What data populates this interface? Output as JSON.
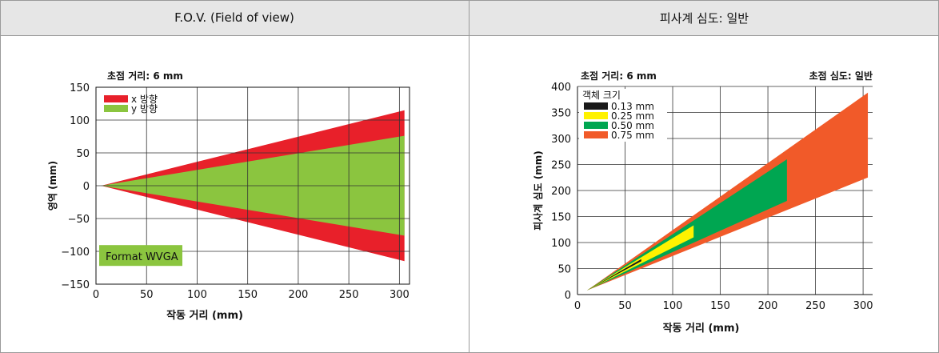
{
  "panels": {
    "left_title": "F.O.V. (Field of view)",
    "right_title": "피사계 심도: 일반"
  },
  "chart_data": [
    {
      "type": "area",
      "title": "초점 거리: 6 mm",
      "xlabel": "작동 거리 (mm)",
      "ylabel": "영역 (mm)",
      "xlim": [
        0,
        310
      ],
      "ylim": [
        -150,
        150
      ],
      "xticks": [
        0,
        50,
        100,
        150,
        200,
        250,
        300
      ],
      "yticks": [
        150,
        100,
        50,
        0,
        -50,
        -100,
        -150
      ],
      "ytick_labels": [
        "150",
        "100",
        "50",
        "0",
        "−50",
        "−100",
        "−150"
      ],
      "grid": true,
      "legend": "top-left",
      "annotation": "Format WVGA",
      "series": [
        {
          "name": "x 방향",
          "color": "#e8202a",
          "x": [
            5,
            305
          ],
          "upper": [
            0,
            115
          ],
          "lower": [
            0,
            -115
          ]
        },
        {
          "name": "y 방향",
          "color": "#8bc53f",
          "x": [
            5,
            305
          ],
          "upper": [
            0,
            76
          ],
          "lower": [
            0,
            -76
          ]
        }
      ]
    },
    {
      "type": "area",
      "title": "초점 거리: 6  mm",
      "subtitle": "초점 심도: 일반",
      "xlabel": "작동 거리 (mm)",
      "ylabel": "피사계 심도 (mm)",
      "xlim": [
        0,
        310
      ],
      "ylim": [
        0,
        400
      ],
      "xticks": [
        0,
        50,
        100,
        150,
        200,
        250,
        300
      ],
      "yticks": [
        400,
        350,
        300,
        250,
        200,
        150,
        100,
        50,
        0
      ],
      "grid": true,
      "legend": "top-left",
      "legend_title": "객체 크기",
      "series": [
        {
          "name": "0.75  mm",
          "color": "#f15a29",
          "polygon": [
            [
              10,
              8
            ],
            [
              305,
              388
            ],
            [
              305,
              225
            ],
            [
              10,
              8
            ]
          ]
        },
        {
          "name": "0.50  mm",
          "color": "#00a651",
          "polygon": [
            [
              10,
              8
            ],
            [
              220,
              260
            ],
            [
              220,
              180
            ],
            [
              10,
              8
            ]
          ]
        },
        {
          "name": "0.25  mm",
          "color": "#fff200",
          "polygon": [
            [
              10,
              8
            ],
            [
              122,
              133
            ],
            [
              122,
              110
            ],
            [
              10,
              8
            ]
          ]
        },
        {
          "name": "0.13  mm",
          "color": "#1a1a1a",
          "polygon": [
            [
              10,
              8
            ],
            [
              67,
              68
            ],
            [
              67,
              64
            ],
            [
              10,
              8
            ]
          ]
        }
      ]
    }
  ]
}
